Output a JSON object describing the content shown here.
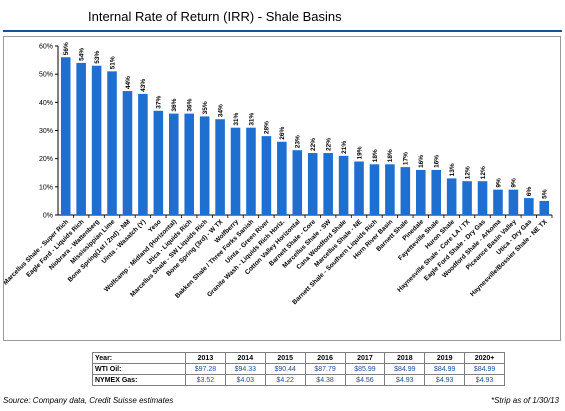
{
  "title": "Internal Rate of Return (IRR) - Shale Basins",
  "chart_data": {
    "type": "bar",
    "ylim": [
      0,
      60
    ],
    "yticks": [
      "0%",
      "10%",
      "20%",
      "30%",
      "40%",
      "50%",
      "60%"
    ],
    "grid": false,
    "bar_color": "#1f6fd1",
    "categories": [
      "Marcellus Shale - Super Rich",
      "Eagle Ford - Liquids Rich",
      "Niobrara - Wattenberg",
      "Mississippian Lime",
      "Bone Spring(1st / 2nd) - NM",
      "Uinta - Wasatch (Y)",
      "Yeso",
      "Wolfcamp - Midland (Horizontal)",
      "Utica - Liquids Rich",
      "Marcellus Shale - SW Liquids Rich",
      "Bone Spring (3rd) - W TX",
      "Wolfberry",
      "Bakken Shale / Three Forks Sanish",
      "Uinta - Green River",
      "Granite Wash - Liquids Rich Horiz.",
      "Cotton Valley Horizontal",
      "Barnett Shale - Core",
      "Marcellus Shale - SW",
      "Cana Woodford Shale",
      "Marcellus Shale - NE",
      "Barnett Shale - Southern Liquids Rich",
      "Horn River Basin",
      "Barnett Shale",
      "Pinedale",
      "Fayetteville Shale",
      "Huron Shale",
      "Haynesville Shale - Core LA / TX",
      "Eagle Ford Shale - Dry Gas",
      "Woodford Shale - Arkoma",
      "Piceance Basin Valley",
      "Utica - Dry Gas",
      "Haynesville/Bossier Shale - NE TX"
    ],
    "values": [
      56,
      54,
      53,
      51,
      44,
      43,
      37,
      36,
      36,
      35,
      34,
      31,
      31,
      28,
      26,
      23,
      22,
      22,
      21,
      19,
      18,
      18,
      17,
      16,
      16,
      13,
      12,
      12,
      9,
      9,
      6,
      5
    ],
    "value_labels": [
      "56%",
      "54%",
      "53%",
      "51%",
      "44%",
      "43%",
      "37%",
      "36%",
      "36%",
      "35%",
      "34%",
      "31%",
      "31%",
      "28%",
      "26%",
      "23%",
      "22%",
      "22%",
      "21%",
      "19%",
      "18%",
      "18%",
      "17%",
      "16%",
      "16%",
      "13%",
      "12%",
      "12%",
      "9%",
      "9%",
      "6%",
      "5%"
    ]
  },
  "price_table": {
    "header_label": "Year:",
    "years": [
      "2013",
      "2014",
      "2015",
      "2016",
      "2017",
      "2018",
      "2019",
      "2020+"
    ],
    "rows": [
      {
        "label": "WTI Oil:",
        "values": [
          "$97.28",
          "$94.33",
          "$90.44",
          "$87.79",
          "$85.99",
          "$84.99",
          "$84.99",
          "$84.99"
        ]
      },
      {
        "label": "NYMEX Gas:",
        "values": [
          "$3.52",
          "$4.03",
          "$4.22",
          "$4.38",
          "$4.56",
          "$4.93",
          "$4.93",
          "$4.93"
        ]
      }
    ]
  },
  "source": "Source: Company data, Credit Suisse estimates",
  "strip_note": "*Strip as of 1/30/13"
}
